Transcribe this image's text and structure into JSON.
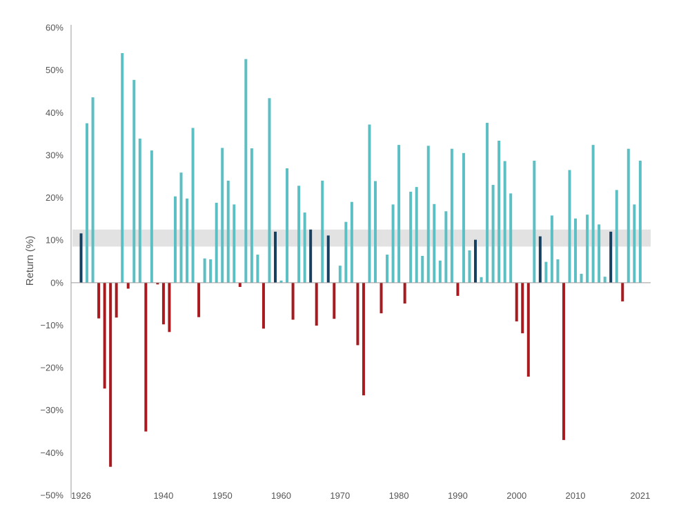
{
  "chart_data": {
    "type": "bar",
    "ylabel": "Return (%)",
    "ylim": [
      -50,
      60
    ],
    "y_ticks": [
      "60%",
      "50%",
      "40%",
      "30%",
      "20%",
      "10%",
      "0%",
      "−10%",
      "−20%",
      "−30%",
      "−40%",
      "−50%"
    ],
    "x_tick_labels": [
      {
        "year": 1926,
        "label": "1926"
      },
      {
        "year": 1940,
        "label": "1940"
      },
      {
        "year": 1950,
        "label": "1950"
      },
      {
        "year": 1960,
        "label": "1960"
      },
      {
        "year": 1970,
        "label": "1970"
      },
      {
        "year": 1980,
        "label": "1980"
      },
      {
        "year": 1990,
        "label": "1990"
      },
      {
        "year": 2000,
        "label": "2000"
      },
      {
        "year": 2010,
        "label": "2010"
      },
      {
        "year": 2021,
        "label": "2021"
      }
    ],
    "band": {
      "from": 8.5,
      "to": 12.5,
      "color": "#e2e2e2"
    },
    "colors": {
      "positive": "#5bbfc3",
      "negative": "#a71a1f",
      "average_range": "#173f5f"
    },
    "x": [
      1926,
      1927,
      1928,
      1929,
      1930,
      1931,
      1932,
      1933,
      1934,
      1935,
      1936,
      1937,
      1938,
      1939,
      1940,
      1941,
      1942,
      1943,
      1944,
      1945,
      1946,
      1947,
      1948,
      1949,
      1950,
      1951,
      1952,
      1953,
      1954,
      1955,
      1956,
      1957,
      1958,
      1959,
      1960,
      1961,
      1962,
      1963,
      1964,
      1965,
      1966,
      1967,
      1968,
      1969,
      1970,
      1971,
      1972,
      1973,
      1974,
      1975,
      1976,
      1977,
      1978,
      1979,
      1980,
      1981,
      1982,
      1983,
      1984,
      1985,
      1986,
      1987,
      1988,
      1989,
      1990,
      1991,
      1992,
      1993,
      1994,
      1995,
      1996,
      1997,
      1998,
      1999,
      2000,
      2001,
      2002,
      2003,
      2004,
      2005,
      2006,
      2007,
      2008,
      2009,
      2010,
      2011,
      2012,
      2013,
      2014,
      2015,
      2016,
      2017,
      2018,
      2019,
      2020,
      2021
    ],
    "values": [
      11.6,
      37.5,
      43.6,
      -8.4,
      -24.9,
      -43.3,
      -8.2,
      54.0,
      -1.4,
      47.7,
      33.9,
      -35.0,
      31.1,
      -0.4,
      -9.8,
      -11.6,
      20.3,
      25.9,
      19.8,
      36.4,
      -8.1,
      5.7,
      5.5,
      18.8,
      31.7,
      24.0,
      18.4,
      -1.0,
      52.6,
      31.6,
      6.6,
      -10.8,
      43.4,
      12.0,
      0.5,
      26.9,
      -8.7,
      22.8,
      16.5,
      12.5,
      -10.1,
      24.0,
      11.1,
      -8.5,
      4.0,
      14.3,
      19.0,
      -14.7,
      -26.5,
      37.2,
      23.9,
      -7.2,
      6.6,
      18.4,
      32.4,
      -4.9,
      21.4,
      22.5,
      6.3,
      32.2,
      18.5,
      5.2,
      16.8,
      31.5,
      -3.1,
      30.5,
      7.6,
      10.1,
      1.3,
      37.6,
      23.0,
      33.4,
      28.6,
      21.0,
      -9.1,
      -11.9,
      -22.1,
      28.7,
      10.9,
      4.9,
      15.8,
      5.5,
      -37.0,
      26.5,
      15.1,
      2.1,
      16.0,
      32.4,
      13.7,
      1.4,
      12.0,
      21.8,
      -4.4,
      31.5,
      18.4,
      28.7
    ]
  }
}
